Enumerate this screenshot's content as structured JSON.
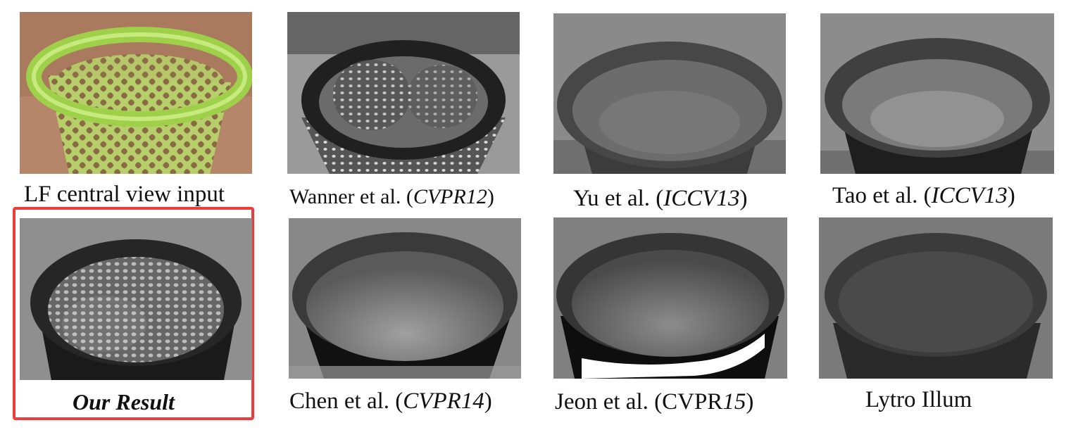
{
  "figure": {
    "panels": [
      {
        "id": "lf-input",
        "caption_pre": "LF central view input",
        "caption_em": "",
        "caption_post": ""
      },
      {
        "id": "wanner",
        "caption_pre": "Wanner et al. (",
        "caption_em": "CVPR12",
        "caption_post": ")"
      },
      {
        "id": "yu",
        "caption_pre": "Yu et al. (",
        "caption_em": "ICCV13",
        "caption_post": ")"
      },
      {
        "id": "tao",
        "caption_pre": "Tao et al. (",
        "caption_em": "ICCV13",
        "caption_post": ")"
      },
      {
        "id": "ours",
        "caption_pre": "",
        "caption_em": "Our Result",
        "caption_post": ""
      },
      {
        "id": "chen",
        "caption_pre": "Chen et al. (",
        "caption_em": "CVPR14",
        "caption_post": ")"
      },
      {
        "id": "jeon",
        "caption_pre": "Jeon et al. (CVPR",
        "caption_em": "15",
        "caption_post": ")"
      },
      {
        "id": "lytro",
        "caption_pre": "Lytro Illum",
        "caption_em": "",
        "caption_post": ""
      }
    ],
    "highlight_color": "#ee3b3b"
  }
}
